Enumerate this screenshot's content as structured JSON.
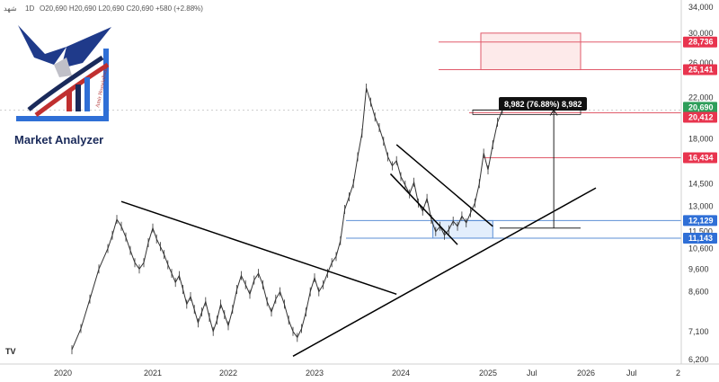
{
  "header": {
    "symbol": "شهد",
    "interval": "1D",
    "ohlc": "O20,690 H20,690 L20,690 C20,690 +580 (+2.88%)"
  },
  "logo": {
    "brand": "Market Analyzer",
    "sub": "Amir HosseinPousat"
  },
  "watermark": "TV",
  "measure_label": "8,982 (76.88%) 8,982",
  "colors": {
    "price_line": "#333333",
    "trendline": "#000000",
    "resistance": "#e05a6a",
    "support": "#5b8fd6",
    "zone_fill": "#fdeaea",
    "support_zone_fill": "#e3eefc",
    "tag_red": "#e8344e",
    "tag_green": "#2e9e5a",
    "tag_blue": "#2f6fd6",
    "label_bg": "#111111"
  },
  "chart_data": {
    "type": "line",
    "y_scale": "log",
    "ylim": [
      6300,
      34000
    ],
    "y_ticks": [
      "34,000",
      "30,000",
      "26,000",
      "22,000",
      "18,000",
      "14,500",
      "13,000",
      "11,500",
      "10,600",
      "9,600",
      "8,600",
      "7,100",
      "6,200"
    ],
    "y_tick_values": [
      34000,
      30000,
      26000,
      22000,
      18000,
      14500,
      13000,
      11500,
      10600,
      9600,
      8600,
      7100,
      6200
    ],
    "x_ticks": [
      "2020",
      "2021",
      "2022",
      "2023",
      "2024",
      "2025",
      "Jul",
      "2026",
      "Jul",
      "2"
    ],
    "x_tick_values": [
      2020.0,
      2021.0,
      2022.0,
      2023.0,
      2024.0,
      2025.0,
      2025.5,
      2026.0,
      2026.5,
      2027.0
    ],
    "xlim": [
      2019.55,
      2027.0
    ],
    "price_series": {
      "x": [
        2020.1,
        2020.2,
        2020.3,
        2020.4,
        2020.5,
        2020.55,
        2020.6,
        2020.65,
        2020.7,
        2020.75,
        2020.8,
        2020.85,
        2020.9,
        2020.95,
        2021.0,
        2021.05,
        2021.1,
        2021.15,
        2021.2,
        2021.25,
        2021.3,
        2021.35,
        2021.4,
        2021.45,
        2021.5,
        2021.55,
        2021.6,
        2021.65,
        2021.7,
        2021.75,
        2021.8,
        2021.85,
        2021.9,
        2021.95,
        2022.0,
        2022.05,
        2022.1,
        2022.15,
        2022.2,
        2022.25,
        2022.3,
        2022.35,
        2022.4,
        2022.45,
        2022.5,
        2022.55,
        2022.6,
        2022.65,
        2022.7,
        2022.75,
        2022.8,
        2022.85,
        2022.9,
        2022.95,
        2023.0,
        2023.05,
        2023.1,
        2023.15,
        2023.2,
        2023.25,
        2023.3,
        2023.35,
        2023.4,
        2023.45,
        2023.5,
        2023.55,
        2023.6,
        2023.65,
        2023.7,
        2023.75,
        2023.8,
        2023.85,
        2023.9,
        2023.95,
        2024.0,
        2024.05,
        2024.1,
        2024.15,
        2024.2,
        2024.25,
        2024.3,
        2024.35,
        2024.4,
        2024.45,
        2024.5,
        2024.55,
        2024.6,
        2024.65,
        2024.7,
        2024.75,
        2024.8,
        2024.85,
        2024.9,
        2024.95,
        2025.0,
        2025.05,
        2025.1,
        2025.15
      ],
      "y": [
        6500,
        7200,
        8300,
        9600,
        10600,
        11300,
        12200,
        11800,
        11200,
        10500,
        9900,
        9600,
        9900,
        10900,
        11700,
        11100,
        10700,
        10300,
        9800,
        9400,
        9000,
        9300,
        8700,
        8100,
        8400,
        7900,
        7400,
        7800,
        8200,
        7600,
        7100,
        7500,
        8100,
        7700,
        7300,
        7900,
        8700,
        9300,
        8900,
        8500,
        9100,
        9400,
        8900,
        8200,
        7800,
        8300,
        8600,
        8100,
        7500,
        7100,
        6900,
        7200,
        7800,
        8600,
        9200,
        8600,
        8900,
        9400,
        9900,
        10200,
        11000,
        12800,
        13600,
        14500,
        16500,
        18500,
        23000,
        21500,
        20000,
        19000,
        17800,
        16500,
        15800,
        16200,
        15000,
        14400,
        13800,
        14600,
        13200,
        12700,
        13500,
        12200,
        11500,
        11800,
        11300,
        11600,
        12100,
        11800,
        12400,
        12000,
        12600,
        13200,
        14500,
        16800,
        15500,
        17500,
        19500,
        20690
      ]
    },
    "horizontal_levels": [
      {
        "value": 28736,
        "label": "28,736",
        "kind": "resistance"
      },
      {
        "value": 25141,
        "label": "25,141",
        "kind": "resistance"
      },
      {
        "value": 20690,
        "label": "20,690",
        "kind": "last"
      },
      {
        "value": 20412,
        "label": "20,412",
        "kind": "resistance"
      },
      {
        "value": 16434,
        "label": "16,434",
        "kind": "resistance"
      },
      {
        "value": 12129,
        "label": "12,129",
        "kind": "support"
      },
      {
        "value": 11143,
        "label": "11,143",
        "kind": "support"
      }
    ],
    "trendlines": [
      {
        "x1": 2020.65,
        "y1": 13300,
        "x2": 2023.95,
        "y2": 8500
      },
      {
        "x1": 2022.75,
        "y1": 6300,
        "x2": 2026.1,
        "y2": 14200
      },
      {
        "x1": 2023.95,
        "y1": 17500,
        "x2": 2025.05,
        "y2": 11800
      },
      {
        "x1": 2023.88,
        "y1": 15200,
        "x2": 2024.65,
        "y2": 10800
      }
    ],
    "zones": [
      {
        "x1": 2025.0,
        "x2": 2026.0,
        "y1": 25141,
        "y2": 30000,
        "kind": "resistance"
      },
      {
        "x1": 2024.45,
        "x2": 2025.05,
        "y1": 11143,
        "y2": 12129,
        "kind": "support"
      }
    ],
    "measure": {
      "x": 2025.68,
      "y_from": 11700,
      "y_to": 20690
    },
    "last_price": 20690
  }
}
